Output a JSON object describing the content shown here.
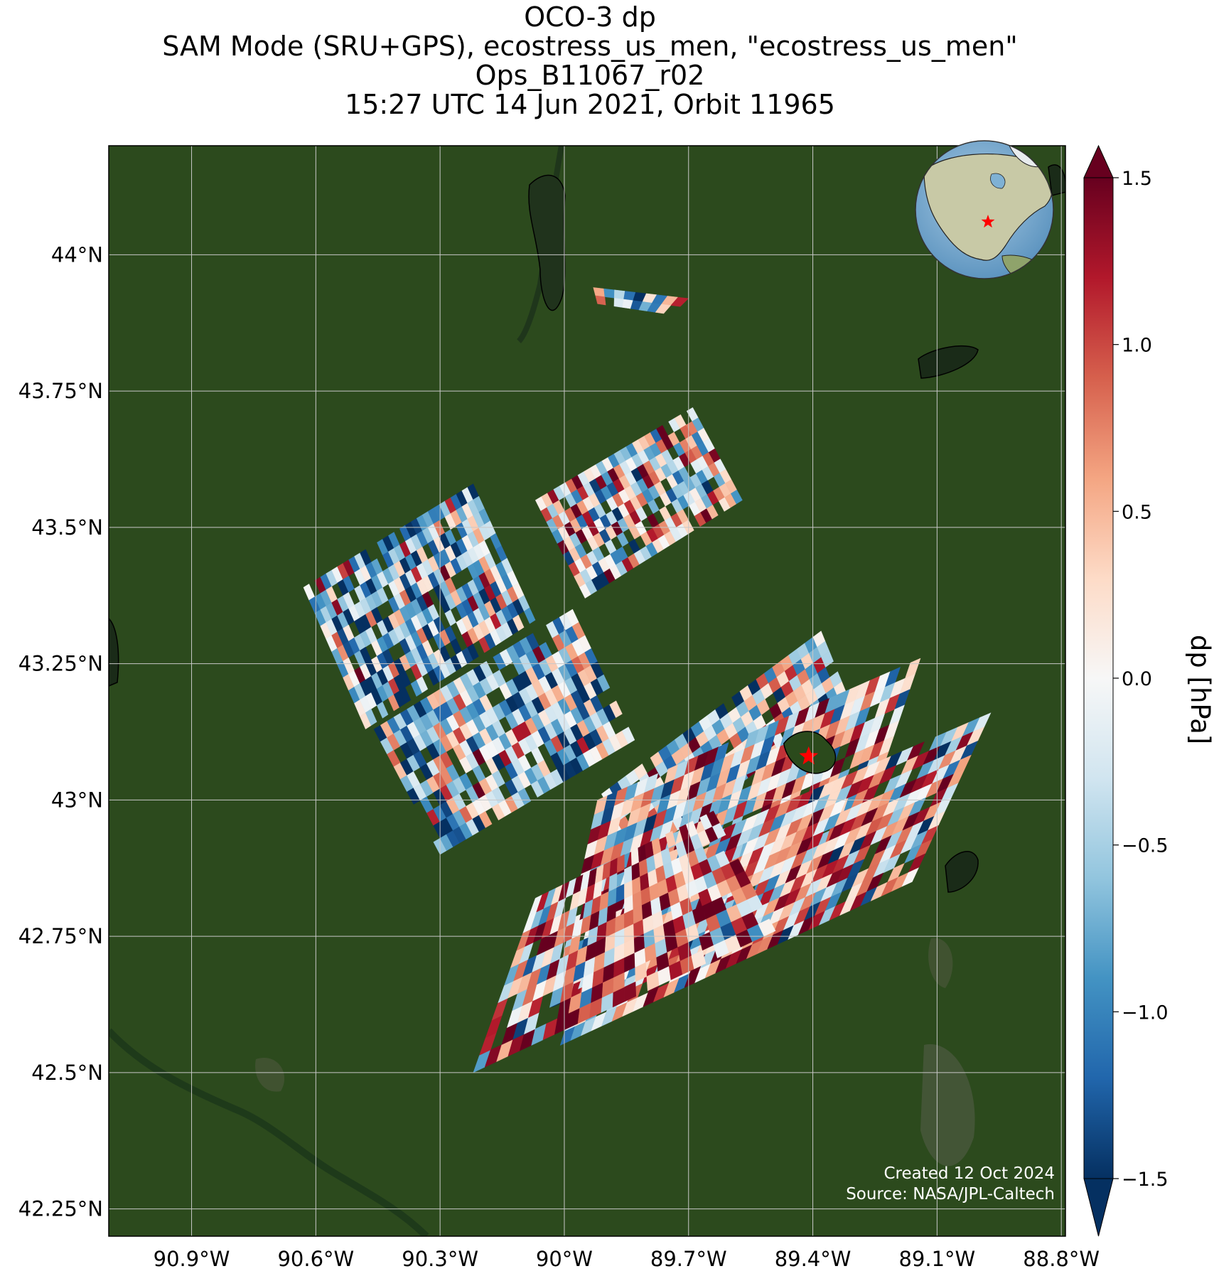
{
  "title_lines": [
    "OCO-3 dp",
    "SAM Mode (SRU+GPS), ecostress_us_men, \"ecostress_us_men\"",
    "Ops_B11067_r02",
    "15:27 UTC 14 Jun 2021, Orbit 11965"
  ],
  "credits": [
    "Created 12 Oct 2024",
    "Source: NASA/JPL-Caltech"
  ],
  "colors": {
    "background_land": "#2c4a1d",
    "grid": "#c8c8c8",
    "target_marker": "#ff0000",
    "colormap": "RdBu_r"
  },
  "chart_data": {
    "type": "heatmap",
    "variable": "dp",
    "colorbar_label": "dp [hPa]",
    "colorbar_ticks": [
      "1.5",
      "1.0",
      "0.5",
      "0.0",
      "−0.5",
      "−1.0",
      "−1.5"
    ],
    "colorbar_values": [
      1.5,
      1.0,
      0.5,
      0.0,
      -0.5,
      -1.0,
      -1.5
    ],
    "vmin": -1.5,
    "vmax": 1.5,
    "extend": "both",
    "x_ticks": [
      "90.9°W",
      "90.6°W",
      "90.3°W",
      "90°W",
      "89.7°W",
      "89.4°W",
      "89.1°W",
      "88.8°W"
    ],
    "x_values": [
      -90.9,
      -90.6,
      -90.3,
      -90.0,
      -89.7,
      -89.4,
      -89.1,
      -88.8
    ],
    "y_ticks": [
      "44°N",
      "43.75°N",
      "43.5°N",
      "43.25°N",
      "43°N",
      "42.75°N",
      "42.5°N",
      "42.25°N"
    ],
    "y_values": [
      44.0,
      43.75,
      43.5,
      43.25,
      43.0,
      42.75,
      42.5,
      42.25
    ],
    "xlim": [
      -91.1,
      -88.79
    ],
    "ylim": [
      42.2,
      44.2
    ],
    "grid": true,
    "target": {
      "lon": -89.41,
      "lat": 43.08
    },
    "swaths": [
      {
        "corners": [
          [
            -90.63,
            43.39
          ],
          [
            -90.22,
            43.58
          ],
          [
            -90.07,
            43.33
          ],
          [
            -90.48,
            43.13
          ]
        ],
        "cols": 30,
        "rows": 11,
        "bias": -0.45
      },
      {
        "corners": [
          [
            -90.07,
            43.55
          ],
          [
            -89.69,
            43.72
          ],
          [
            -89.57,
            43.55
          ],
          [
            -89.95,
            43.37
          ]
        ],
        "cols": 26,
        "rows": 9,
        "bias": 0.1
      },
      {
        "corners": [
          [
            -90.46,
            43.13
          ],
          [
            -89.98,
            43.35
          ],
          [
            -89.83,
            43.11
          ],
          [
            -90.3,
            42.9
          ]
        ],
        "cols": 30,
        "rows": 10,
        "bias": -0.4
      },
      {
        "corners": [
          [
            -89.93,
            43.0
          ],
          [
            -89.38,
            43.31
          ],
          [
            -89.31,
            43.18
          ],
          [
            -89.84,
            42.88
          ]
        ],
        "cols": 28,
        "rows": 7,
        "bias": -0.25
      },
      {
        "corners": [
          [
            -89.92,
            43.0
          ],
          [
            -89.14,
            43.26
          ],
          [
            -89.32,
            42.86
          ],
          [
            -90.03,
            42.62
          ]
        ],
        "cols": 32,
        "rows": 14,
        "bias": 0.15
      },
      {
        "corners": [
          [
            -89.88,
            42.86
          ],
          [
            -88.97,
            43.16
          ],
          [
            -89.16,
            42.85
          ],
          [
            -90.01,
            42.55
          ]
        ],
        "cols": 34,
        "rows": 12,
        "bias": 0.35
      },
      {
        "corners": [
          [
            -90.22,
            42.5
          ],
          [
            -89.49,
            42.76
          ],
          [
            -89.64,
            42.98
          ],
          [
            -90.07,
            42.82
          ]
        ],
        "cols": 26,
        "rows": 10,
        "bias": 0.55
      },
      {
        "corners": [
          [
            -89.93,
            43.94
          ],
          [
            -89.7,
            43.92
          ],
          [
            -89.74,
            43.89
          ],
          [
            -89.92,
            43.91
          ]
        ],
        "cols": 9,
        "rows": 2,
        "bias": 0.1
      }
    ]
  }
}
